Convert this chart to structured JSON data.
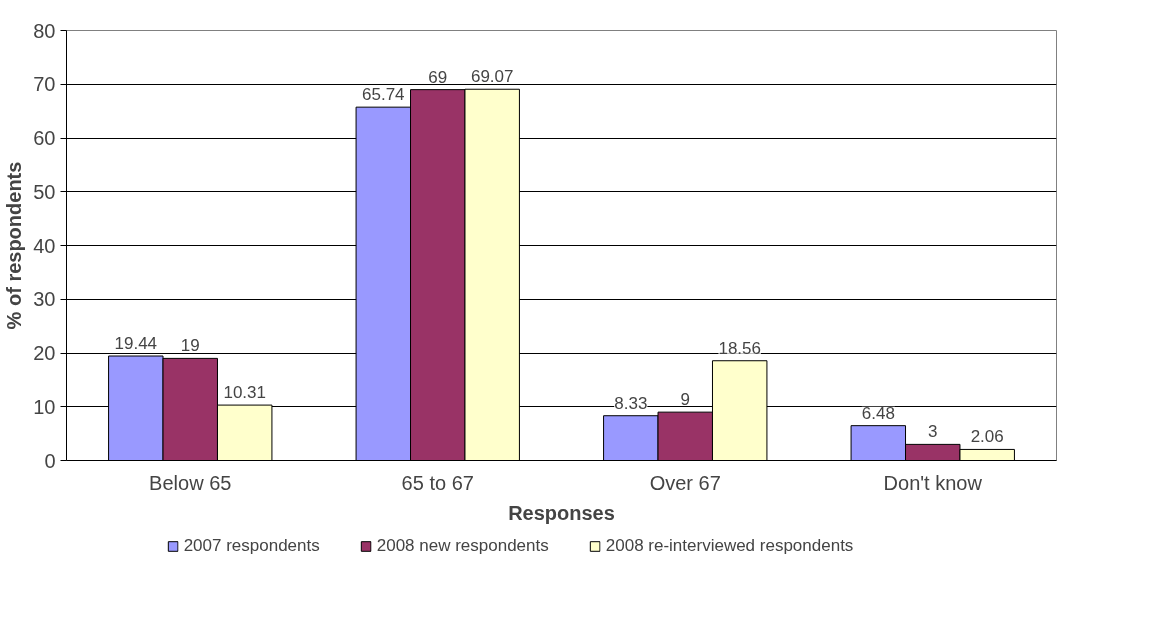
{
  "chart_data": {
    "type": "bar",
    "xlabel": "Responses",
    "ylabel": "% of respondents",
    "categories": [
      "Below 65",
      "65 to 67",
      "Over 67",
      "Don't know"
    ],
    "series": [
      {
        "name": "2007 respondents",
        "color": "#9999ff",
        "values": [
          19.44,
          65.74,
          8.33,
          6.48
        ]
      },
      {
        "name": "2008 new respondents",
        "color": "#993366",
        "values": [
          19,
          69,
          9,
          3
        ]
      },
      {
        "name": "2008 re-interviewed respondents",
        "color": "#ffffcc",
        "values": [
          10.31,
          69.07,
          18.56,
          2.06
        ]
      }
    ],
    "ylim": [
      0,
      80
    ],
    "yticks": [
      0,
      10,
      20,
      30,
      40,
      50,
      60,
      70,
      80
    ],
    "grid": "y",
    "legend": "bottom",
    "data_labels": true
  }
}
